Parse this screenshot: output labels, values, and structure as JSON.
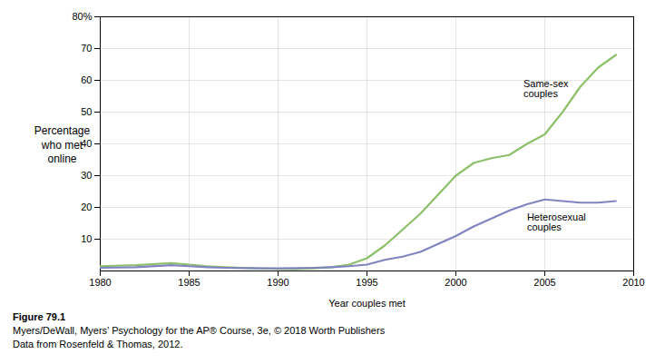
{
  "chart_data": {
    "type": "line",
    "xlabel": "Year couples met",
    "ylabel": "Percentage\nwho met\nonline",
    "x": [
      1980,
      1982,
      1984,
      1985,
      1986,
      1987,
      1988,
      1989,
      1990,
      1991,
      1992,
      1993,
      1994,
      1995,
      1996,
      1997,
      1998,
      1999,
      2000,
      2001,
      2002,
      2003,
      2004,
      2005,
      2006,
      2007,
      2008,
      2009
    ],
    "series": [
      {
        "color": "#8dc06a",
        "values": [
          1.5,
          1.8,
          2.5,
          2.0,
          1.5,
          1.2,
          1.0,
          0.8,
          0.7,
          0.6,
          0.8,
          1.2,
          2.0,
          4.0,
          8.0,
          13.0,
          18.0,
          24.0,
          30.0,
          34.0,
          35.5,
          36.5,
          40.0,
          43.0,
          50.0,
          58.0,
          64.0,
          68.0
        ]
      },
      {
        "color": "#8085c0",
        "values": [
          1.0,
          1.2,
          1.8,
          1.5,
          1.2,
          1.0,
          0.9,
          0.8,
          0.8,
          0.9,
          1.0,
          1.2,
          1.5,
          2.0,
          3.5,
          4.5,
          6.0,
          8.5,
          11.0,
          14.0,
          16.5,
          19.0,
          21.0,
          22.5,
          22.0,
          21.5,
          21.5,
          22.0
        ]
      }
    ],
    "xlim": [
      1980,
      2010
    ],
    "ylim": [
      0,
      80
    ],
    "xticks": [
      1980,
      1985,
      1990,
      1995,
      2000,
      2005,
      2010
    ],
    "yticks": [
      10,
      20,
      30,
      40,
      50,
      60,
      70,
      {
        "value": 80,
        "label": "80%"
      }
    ],
    "grid": true,
    "annotations": [
      {
        "text": "Same-sex\ncouples",
        "x": 2003.8,
        "y": 60
      },
      {
        "text": "Heterosexual\ncouples",
        "x": 2004.0,
        "y": 18
      }
    ],
    "caption": [
      "Figure 79.1",
      "Myers/DeWall, Myers’ Psychology for the AP® Course, 3e, © 2018 Worth Publishers",
      "Data from Rosenfeld & Thomas, 2012."
    ]
  }
}
